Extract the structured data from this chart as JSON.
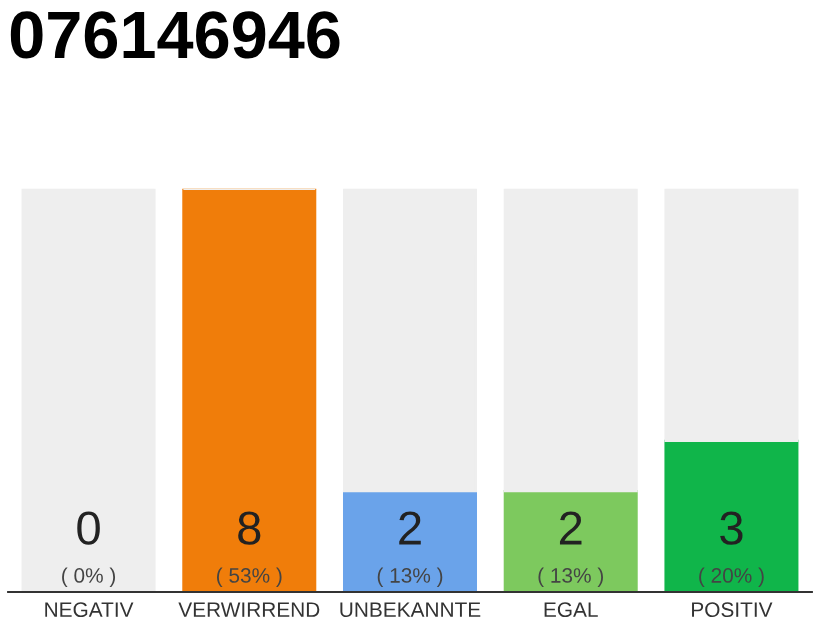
{
  "chart_data": {
    "type": "bar",
    "title": "076146946",
    "categories": [
      "NEGATIV",
      "VERWIRREND",
      "UNBEKANNTE",
      "EGAL",
      "POSITIV"
    ],
    "stacked": true,
    "ylim": [
      0,
      8
    ],
    "tick_labels": "x",
    "grid": false,
    "legend": false,
    "series": [
      {
        "colors": [
          "#888888",
          "#f07d0a",
          "#6aa3ea",
          "#7dc95e",
          "#10b54a"
        ],
        "values": [
          0,
          8,
          2,
          2,
          3
        ],
        "value_labels": [
          "0\n( 0% )",
          "8\n( 53% )",
          "2\n( 13% )",
          "2\n( 13% )",
          "3\n( 20% )"
        ]
      },
      {
        "color": "#eeeeee",
        "values": [
          8,
          0,
          6,
          6,
          5
        ]
      }
    ]
  }
}
